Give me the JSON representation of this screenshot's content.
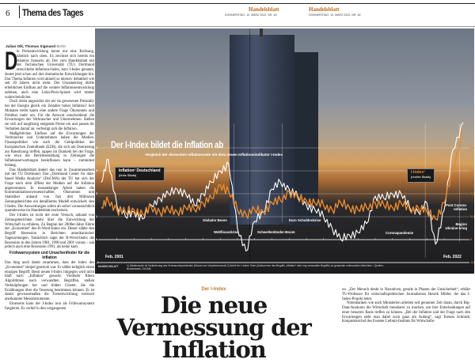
{
  "header": {
    "page_number": "6",
    "section": "Thema des Tages",
    "masthead": "Handelsblatt",
    "dateline": "DONNERSTAG, 10. MÄRZ 2022, NR. 48"
  },
  "article": {
    "byline_authors": "Julian Olk, Thomas Sigmund",
    "byline_place": "Berlin",
    "dropcap": "D",
    "left_paragraphs": [
      "ie Preisentwicklung kennt nur eine Richtung, nämlich nach oben. Es zeichnet sich bereits ein düsteres Szenario ab. Der vom Handelsblatt mit der Technischen Universität (TU) Dortmund entwickelte Inflations-Index, kurz I-Index genannt, deutet jetzt schon auf drei dramatische Entwicklungen hin. Das Thema Inflation wird aktuell so intensiv debattiert wie seit 20 Jahren nicht mehr. Der Ukrainekrieg dürfte erheblichen Einfluss auf die weitere Inflationsentwicklung nehmen, auch eine Lohn-Preis-Spirale wird immer wahrscheinlicher.",
      "Doch droht angesichts der nie da gewesenen Preisrally bei der Energie gleich ein Zeitalter hoher Inflation? Seit Monaten treibt kaum eine andere Frage Ökonomen und Politiker mehr um. Für die Antwort entscheidend: die Erwartungen der Verbraucher und Unternehmen. Stellen sie sich auf langfristig steigende Preise ein und passen ihr Verhalten darauf an, verfestigt sich die Inflation.",
      "Maßgeblichen Einfluss auf die Erwartungen der Verbraucher und Unternehmen haben die Medien. Finanzpolitiker wie auch die Geldpolitiker der Europäischen Zentralbank (EZB), die sich am Donnerstag zur Ratssitzung treffen, tappen im Dunkeln bei der Frage, wie etwa die Berichterstattung in Zeitungen die Inflationserwartungen beeinflussen kann – zumindest bislang.",
      "Das Handelsblatt ändert das nun in Zusammenarbeit mit der TU Dortmund. Das „Dortmund Center for data-based Media Analysis“ (DoCMA) der TU hat sich der Frage nach dem Effekt der Medien auf die Inflation angenommen. In monatelanger Arbeit haben die Kommunikationswissenschaftler, Ökonomen und Statistiker anhand von fast drei Millionen Zeitungsberichten ein detailliertes Modell entwickelt: den I-Index. Die Auswertungen sollen ab sofort voraussichtlich quartalsweise im Handelsblatt erscheinen.",
      "Der I-Index ist nicht der erste Versuch, anhand von Zeitungsberichten mehr über die Entwicklung der Wirtschaft zu erfahren. Zu Beginn der 2000er-Jahre führte der „Economist“ den R-Word-Index ein. Dieser zählte den Begriff Rezession in Berichten amerikanischer Tageszeitungen. Tatsächlich sagte der R-Word-Index die Rezession in den Jahren 1981, 1990 und 2001 voraus – sah jedoch auch eine Rezession 1991, als keine kam."
    ],
    "subhead": "Frühwarnsystem und Ursachenfinder für die Inflation",
    "left_paragraphs_2": [
      "Das hing auch damit zusammen, dass der Index des „Economist“ simpel gestrickt war. Er zählte lediglich einen einzigen Begriff. Beim neuen I-Index hingegen wird nicht bloß nach „Inflation“ gesucht. Vielmehr filtern Algorithmen nach verwandten Begriffen, stellen Verknüpfungen her und bilden Cluster, die die Erzählungen über die Teuerung bestimmen können. Er ist damit gewissermaßen die Fortentwicklung weltweit anerkannter Messinstrumente.",
      "Einerseits kann der I-Index nun als Frühwarnsystem fungieren. Es verlief in den vergangenen"
    ],
    "right_paragraphs": [
      "on. „Der Mensch denkt in Narrativen, gerade in Phasen der Unsicherheit“, erklärt TU-Professor für wirtschaftspolitischen Journalismus Henrik Müller, der das I-Index-Projekt leitet.",
      "Notenbanken wie auch Ministerien arbeiten seit geraumer Zeit daran, durch Big-Data-Analysen die Wirtschaft messbarer zu machen, um ihre Entscheidungen auf einer besseren Basis treffen zu können. „Bei der Inflation und der Frage nach den Erwartungen steht man dabei noch ganz am Anfang“, sagt Torsten Schmidt, Konjunkturchef des Essener Leibniz-Instituts für Wirtschafts-"
    ],
    "kicker": "Der I-Index",
    "headline": "Die neue Vermessung der Inflation"
  },
  "chart_data": {
    "type": "line",
    "title": "Der I-Index bildet die Inflation ab",
    "subtitle": "Vergleich der deutschen Inflationsrate mit dem neuen Inflationsindikator I-Index",
    "x_start_label": "Feb. 2001",
    "x_end_label": "Feb. 2022",
    "x": [
      2001.1,
      2001.5,
      2002,
      2002.5,
      2003,
      2003.5,
      2004,
      2004.5,
      2005,
      2005.5,
      2006,
      2006.5,
      2007,
      2007.5,
      2008,
      2008.5,
      2009,
      2009.5,
      2010,
      2010.5,
      2011,
      2011.5,
      2012,
      2012.5,
      2013,
      2013.5,
      2014,
      2014.5,
      2015,
      2015.5,
      2016,
      2016.5,
      2017,
      2017.5,
      2018,
      2018.5,
      2019,
      2019.5,
      2020,
      2020.5,
      2021,
      2021.5,
      2022.1
    ],
    "left_axis": {
      "ticks": [
        "4",
        "3",
        "2",
        "1",
        "0",
        "-1"
      ],
      "range": [
        -1,
        4
      ]
    },
    "right_axis": {
      "ticks": [
        "0,04",
        "0,03",
        "0,02",
        "0,01",
        "0",
        "-0,01"
      ],
      "range": [
        -0.01,
        0.04
      ]
    },
    "series": [
      {
        "name": "Inflation¹ Deutschland",
        "note": "(linke Skala)",
        "axis": "left",
        "color": "#ffffff",
        "values": [
          2.5,
          3.5,
          1.5,
          1.0,
          1.2,
          0.9,
          1.5,
          1.8,
          2.0,
          2.2,
          2.0,
          1.5,
          2.0,
          2.5,
          3.0,
          3.3,
          0.5,
          -0.5,
          0.8,
          1.2,
          2.2,
          2.5,
          2.2,
          1.9,
          1.5,
          1.3,
          1.0,
          0.5,
          0.0,
          0.2,
          0.3,
          0.7,
          1.9,
          1.8,
          2.0,
          2.0,
          1.4,
          1.2,
          1.6,
          -0.2,
          1.3,
          3.9,
          5.1
        ]
      },
      {
        "name": "I-Index²",
        "note": "(rechte Skala)",
        "axis": "right",
        "color": "#e8892c",
        "values": [
          0.014,
          0.017,
          0.013,
          0.012,
          0.013,
          0.011,
          0.014,
          0.012,
          0.013,
          0.012,
          0.014,
          0.013,
          0.016,
          0.018,
          0.024,
          0.021,
          0.013,
          0.011,
          0.013,
          0.012,
          0.016,
          0.017,
          0.021,
          0.018,
          0.017,
          0.016,
          0.015,
          0.013,
          0.016,
          0.014,
          0.013,
          0.014,
          0.016,
          0.015,
          0.014,
          0.016,
          0.013,
          0.014,
          0.012,
          0.009,
          0.016,
          0.03,
          0.048
        ]
      }
    ],
    "annotations": [
      "Globaler Boom",
      "Weltfinanzkrise",
      "Schwellenländer-Boom",
      "Euro Schuldenkrise",
      "Coronapandemie",
      "Post Corona-Inflation",
      "Beginn Ukraine-krieg"
    ],
    "source_label": "HANDELSBLATT",
    "footnote": "1) Inflationsrate ist Veränderung des Verbraucherpreisindex (Monat zum Vorjahresmonat) 2) Anteil der I-Index-Texte (Aufkommen des Begriffs „Inflation“ oder eng verwandter Begriffe) an gesamten untersuchten Berichten • Quellen: Bundesbank, DoCMA",
    "grid": true
  }
}
